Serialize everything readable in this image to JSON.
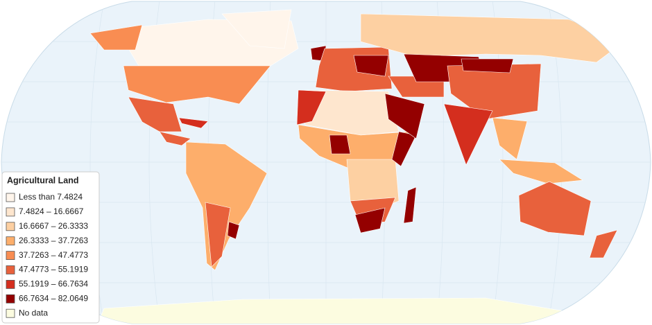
{
  "legend": {
    "title": "Agricultural Land",
    "items": [
      {
        "label": "Less than 7.4824",
        "color": "#fff5eb"
      },
      {
        "label": "7.4824 – 16.6667",
        "color": "#fee6ce"
      },
      {
        "label": "16.6667 – 26.3333",
        "color": "#fdd0a2"
      },
      {
        "label": "26.3333 – 37.7263",
        "color": "#fdae6b"
      },
      {
        "label": "37.7263 – 47.4773",
        "color": "#f98d52"
      },
      {
        "label": "47.4773 – 55.1919",
        "color": "#e8613c"
      },
      {
        "label": "55.1919 – 66.7634",
        "color": "#d42e1e"
      },
      {
        "label": "66.7634 – 82.0649",
        "color": "#940000"
      },
      {
        "label": "No data",
        "color": "#fcfce0"
      }
    ]
  }
}
